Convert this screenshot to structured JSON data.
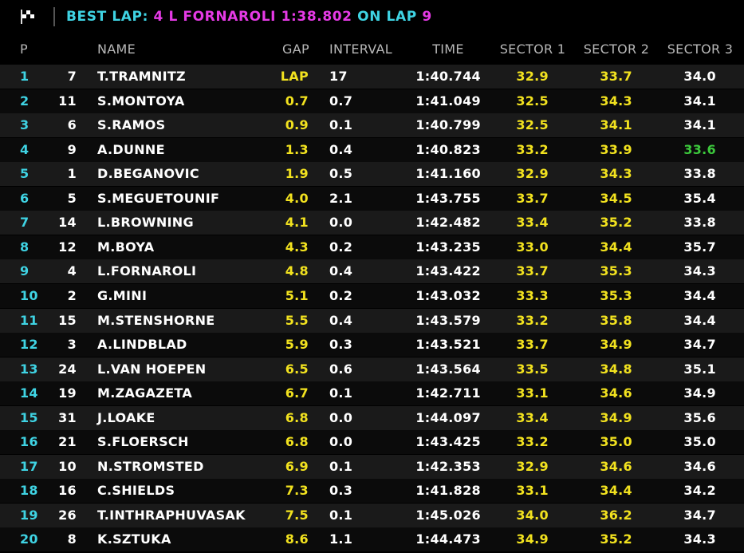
{
  "header": {
    "best_lap_label": "BEST LAP:",
    "best_lap_driver": "4 L FORNAROLI 1:38.802",
    "on_lap_label": "ON LAP",
    "lap": "9"
  },
  "table": {
    "columns": [
      "P",
      "NAME",
      "GAP",
      "INTERVAL",
      "TIME",
      "SECTOR 1",
      "SECTOR 2",
      "SECTOR 3"
    ],
    "column_colors": [
      "#3fd3e3",
      "#ffffff",
      "#ffffff",
      "#f2e21f",
      "#ffffff",
      "#ffffff",
      "#f2e21f",
      "#f2e21f",
      "#ffffff"
    ],
    "highlights": [
      {
        "row": 3,
        "column": 8,
        "color": "#3cc83c"
      }
    ],
    "rows": [
      [
        "1",
        "7",
        "T.TRAMNITZ",
        "LAP",
        "17",
        "1:40.744",
        "32.9",
        "33.7",
        "34.0"
      ],
      [
        "2",
        "11",
        "S.MONTOYA",
        "0.7",
        "0.7",
        "1:41.049",
        "32.5",
        "34.3",
        "34.1"
      ],
      [
        "3",
        "6",
        "S.RAMOS",
        "0.9",
        "0.1",
        "1:40.799",
        "32.5",
        "34.1",
        "34.1"
      ],
      [
        "4",
        "9",
        "A.DUNNE",
        "1.3",
        "0.4",
        "1:40.823",
        "33.2",
        "33.9",
        "33.6"
      ],
      [
        "5",
        "1",
        "D.BEGANOVIC",
        "1.9",
        "0.5",
        "1:41.160",
        "32.9",
        "34.3",
        "33.8"
      ],
      [
        "6",
        "5",
        "S.MEGUETOUNIF",
        "4.0",
        "2.1",
        "1:43.755",
        "33.7",
        "34.5",
        "35.4"
      ],
      [
        "7",
        "14",
        "L.BROWNING",
        "4.1",
        "0.0",
        "1:42.482",
        "33.4",
        "35.2",
        "33.8"
      ],
      [
        "8",
        "12",
        "M.BOYA",
        "4.3",
        "0.2",
        "1:43.235",
        "33.0",
        "34.4",
        "35.7"
      ],
      [
        "9",
        "4",
        "L.FORNAROLI",
        "4.8",
        "0.4",
        "1:43.422",
        "33.7",
        "35.3",
        "34.3"
      ],
      [
        "10",
        "2",
        "G.MINI",
        "5.1",
        "0.2",
        "1:43.032",
        "33.3",
        "35.3",
        "34.4"
      ],
      [
        "11",
        "15",
        "M.STENSHORNE",
        "5.5",
        "0.4",
        "1:43.579",
        "33.2",
        "35.8",
        "34.4"
      ],
      [
        "12",
        "3",
        "A.LINDBLAD",
        "5.9",
        "0.3",
        "1:43.521",
        "33.7",
        "34.9",
        "34.7"
      ],
      [
        "13",
        "24",
        "L.VAN HOEPEN",
        "6.5",
        "0.6",
        "1:43.564",
        "33.5",
        "34.8",
        "35.1"
      ],
      [
        "14",
        "19",
        "M.ZAGAZETA",
        "6.7",
        "0.1",
        "1:42.711",
        "33.1",
        "34.6",
        "34.9"
      ],
      [
        "15",
        "31",
        "J.LOAKE",
        "6.8",
        "0.0",
        "1:44.097",
        "33.4",
        "34.9",
        "35.6"
      ],
      [
        "16",
        "21",
        "S.FLOERSCH",
        "6.8",
        "0.0",
        "1:43.425",
        "33.2",
        "35.0",
        "35.0"
      ],
      [
        "17",
        "10",
        "N.STROMSTED",
        "6.9",
        "0.1",
        "1:42.353",
        "32.9",
        "34.6",
        "34.6"
      ],
      [
        "18",
        "16",
        "C.SHIELDS",
        "7.3",
        "0.3",
        "1:41.828",
        "33.1",
        "34.4",
        "34.2"
      ],
      [
        "19",
        "26",
        "T.INTHRAPHUVASAK",
        "7.5",
        "0.1",
        "1:45.026",
        "34.0",
        "36.2",
        "34.7"
      ],
      [
        "20",
        "8",
        "K.SZTUKA",
        "8.6",
        "1.1",
        "1:44.473",
        "34.9",
        "35.2",
        "34.3"
      ]
    ]
  }
}
